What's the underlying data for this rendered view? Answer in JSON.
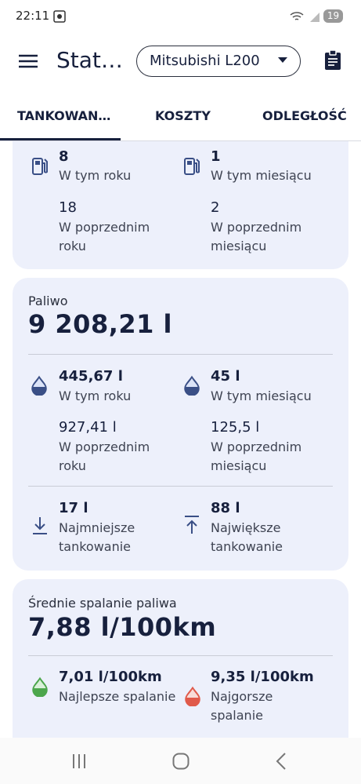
{
  "status": {
    "time": "22:11",
    "battery": "19"
  },
  "header": {
    "title": "Stat…",
    "vehicle": "Mitsubishi L200"
  },
  "tabs": [
    "TANKOWAN…",
    "KOSZTY",
    "ODLEGŁOŚĆ"
  ],
  "cards": [
    {
      "stats": [
        {
          "value": "8",
          "label": "W tym roku"
        },
        {
          "value": "1",
          "label": "W tym miesiącu"
        },
        {
          "value": "18",
          "label": "W poprzednim roku"
        },
        {
          "value": "2",
          "label": "W poprzednim miesiącu"
        }
      ]
    },
    {
      "title": "Paliwo",
      "total": "9 208,21 l",
      "stats": [
        {
          "value": "445,67 l",
          "label": "W tym roku"
        },
        {
          "value": "45 l",
          "label": "W tym miesiącu"
        },
        {
          "value": "927,41 l",
          "label": "W poprzednim roku"
        },
        {
          "value": "125,5 l",
          "label": "W poprzednim miesiącu"
        },
        {
          "value": "17 l",
          "label": "Najmniejsze tankowanie"
        },
        {
          "value": "88 l",
          "label": "Największe tankowanie"
        }
      ]
    },
    {
      "title": "Średnie spalanie paliwa",
      "total": "7,88 l/100km",
      "stats": [
        {
          "value": "7,01 l/100km",
          "label": "Najlepsze spalanie"
        },
        {
          "value": "9,35 l/100km",
          "label": "Najgorsze spalanie"
        }
      ]
    }
  ]
}
